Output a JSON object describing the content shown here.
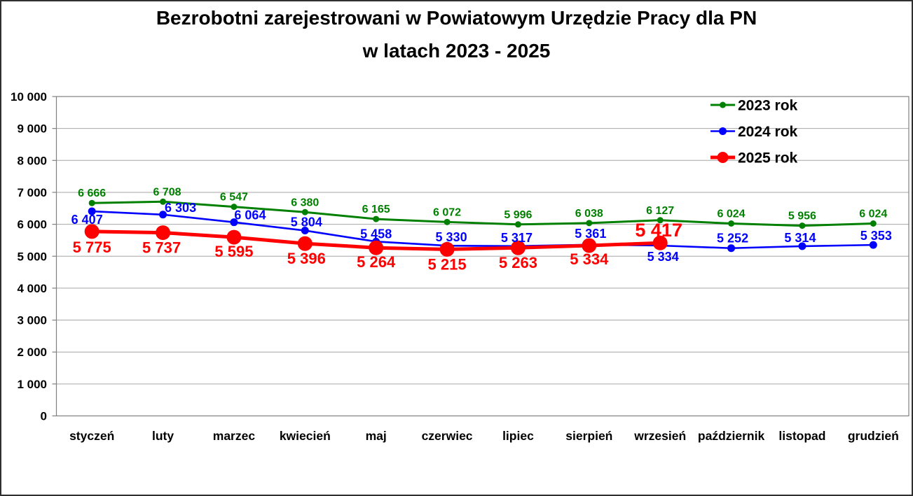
{
  "title": {
    "line1": "Bezrobotni zarejestrowani w Powiatowym Urzędzie Pracy dla PN",
    "line2": "w latach 2023 - 2025"
  },
  "legend": {
    "position": "top-right",
    "items": [
      {
        "label": "2023 rok",
        "icon": "line-dot-marker-icon",
        "color": "#008000"
      },
      {
        "label": "2024 rok",
        "icon": "line-dot-marker-icon",
        "color": "#0000ff"
      },
      {
        "label": "2025 rok",
        "icon": "line-dot-marker-icon",
        "color": "#ff0000"
      }
    ]
  },
  "colors": {
    "series_2023": "#008000",
    "series_2024": "#0000ff",
    "series_2025": "#ff0000",
    "gridline": "#a6a6a6",
    "plot_border": "#808080",
    "text": "#000000",
    "background": "#ffffff"
  },
  "chart_data": {
    "type": "line",
    "title": "Bezrobotni zarejestrowani w Powiatowym Urzędzie Pracy dla PN w latach 2023 - 2025",
    "categories": [
      "styczeń",
      "luty",
      "marzec",
      "kwiecień",
      "maj",
      "czerwiec",
      "lipiec",
      "sierpień",
      "wrzesień",
      "październik",
      "listopad",
      "grudzień"
    ],
    "ylim": [
      0,
      10000
    ],
    "ytick_step": 1000,
    "ytick_labels": [
      "0",
      "1 000",
      "2 000",
      "3 000",
      "4 000",
      "5 000",
      "6 000",
      "7 000",
      "8 000",
      "9 000",
      "10 000"
    ],
    "grid": true,
    "legend_position": "top-right",
    "xlabel": "",
    "ylabel": "",
    "series": [
      {
        "name": "2023 rok",
        "color": "#008000",
        "values": [
          6666,
          6708,
          6547,
          6380,
          6165,
          6072,
          5996,
          6038,
          6127,
          6024,
          5956,
          6024
        ],
        "line_width": 3,
        "marker_radius": 4.5,
        "label_font": 16,
        "label_offsets": [
          [
            0,
            -9
          ],
          [
            6,
            -9
          ],
          [
            0,
            -9
          ],
          [
            0,
            -9
          ],
          [
            0,
            -9
          ],
          [
            0,
            -9
          ],
          [
            0,
            -9
          ],
          [
            0,
            -9
          ],
          [
            0,
            -9
          ],
          [
            0,
            -9
          ],
          [
            0,
            -9
          ],
          [
            0,
            -9
          ]
        ]
      },
      {
        "name": "2024 rok",
        "color": "#0000ff",
        "values": [
          6407,
          6303,
          6064,
          5804,
          5458,
          5330,
          5317,
          5361,
          5334,
          5252,
          5314,
          5353
        ],
        "line_width": 2.6,
        "marker_radius": 5.5,
        "label_font": 18,
        "label_offsets": [
          [
            -7,
            18
          ],
          [
            25,
            -4
          ],
          [
            23,
            -4
          ],
          [
            2,
            -6
          ],
          [
            0,
            -5
          ],
          [
            6,
            -6
          ],
          [
            -2,
            -6
          ],
          [
            2,
            -10
          ],
          [
            4,
            22
          ],
          [
            2,
            -8
          ],
          [
            -3,
            -6
          ],
          [
            4,
            -7
          ]
        ]
      },
      {
        "name": "2025 rok",
        "color": "#ff0000",
        "values": [
          5775,
          5737,
          5595,
          5396,
          5264,
          5215,
          5263,
          5334,
          5417,
          null,
          null,
          null
        ],
        "line_width": 5,
        "marker_radius": 10.5,
        "label_font": 22,
        "big_label_index": 8,
        "big_label_font": 27,
        "label_offsets": [
          [
            0,
            30
          ],
          [
            -2,
            29
          ],
          [
            0,
            28
          ],
          [
            2,
            29
          ],
          [
            0,
            28
          ],
          [
            0,
            29
          ],
          [
            0,
            29
          ],
          [
            0,
            27
          ],
          [
            -2,
            -9
          ],
          null,
          null,
          null
        ]
      }
    ]
  }
}
